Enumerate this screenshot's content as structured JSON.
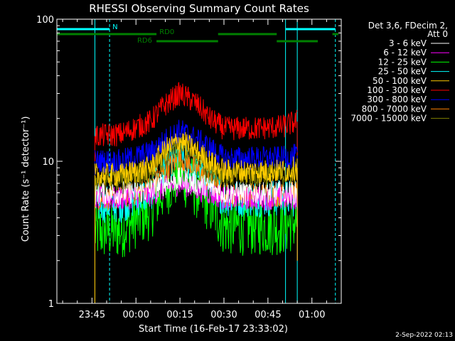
{
  "chart_data": {
    "type": "line",
    "title": "RHESSI Observing Summary Count Rates",
    "xlabel": "Start Time (16-Feb-17 23:33:02)",
    "ylabel": "Count Rate (s⁻¹ detector⁻¹)",
    "yscale": "log",
    "ylim": [
      1,
      100
    ],
    "xlim": [
      "23:33:02",
      "01:10:00"
    ],
    "x_tick_labels": [
      "23:45",
      "00:00",
      "00:15",
      "00:30",
      "00:45",
      "01:00"
    ],
    "y_tick_labels": [
      "1",
      "10",
      "100"
    ],
    "legend": {
      "placement": "right",
      "header_line1": "Det 3,6, FDecim 2,",
      "header_line2": "Att 0"
    },
    "flags": [
      {
        "name": "N",
        "color": "#00ffff",
        "segments": [
          [
            "23:33",
            "23:51"
          ],
          [
            "00:51",
            "01:08"
          ]
        ]
      },
      {
        "name": "RD0",
        "color": "#008000",
        "segments": [
          [
            "23:33",
            "00:07"
          ],
          [
            "00:28",
            "00:48"
          ],
          [
            "01:07",
            "01:09"
          ]
        ]
      },
      {
        "name": "RD6",
        "color": "#008000",
        "segments": [
          [
            "00:07",
            "00:28"
          ],
          [
            "00:48",
            "01:02"
          ]
        ]
      }
    ],
    "markers": [
      {
        "time": "23:33:02",
        "color": "#00ffff",
        "style": "solid"
      },
      {
        "time": "23:46",
        "color": "#00ffff",
        "style": "solid"
      },
      {
        "time": "23:51",
        "color": "#00ffff",
        "style": "dashed"
      },
      {
        "time": "00:51",
        "color": "#00ffff",
        "style": "solid"
      },
      {
        "time": "00:55",
        "color": "#00ffff",
        "style": "solid"
      },
      {
        "time": "01:08",
        "color": "#00ffff",
        "style": "dashed"
      }
    ],
    "data_start": "23:46",
    "data_end": "00:55",
    "series": [
      {
        "name": "3 - 6 keV",
        "color": "#ffffff",
        "x": [
          "23:46",
          "23:55",
          "00:05",
          "00:10",
          "00:15",
          "00:20",
          "00:25",
          "00:30",
          "00:40",
          "00:50",
          "00:55"
        ],
        "y": [
          6,
          6,
          6.2,
          7,
          7.5,
          7,
          6.5,
          6,
          6,
          6,
          6
        ]
      },
      {
        "name": "6 - 12 keV",
        "color": "#ff00ff",
        "x": [
          "23:46",
          "23:55",
          "00:05",
          "00:10",
          "00:15",
          "00:20",
          "00:25",
          "00:30",
          "00:40",
          "00:50",
          "00:55"
        ],
        "y": [
          5.5,
          5.5,
          5.8,
          6.5,
          7,
          6.5,
          6,
          5.5,
          5.5,
          5.5,
          5.5
        ]
      },
      {
        "name": "12 - 25 keV",
        "color": "#00ff00",
        "x": [
          "23:46",
          "23:55",
          "00:05",
          "00:10",
          "00:15",
          "00:20",
          "00:25",
          "00:30",
          "00:40",
          "00:50",
          "00:55"
        ],
        "y": [
          3.2,
          3.3,
          4.5,
          6.5,
          8,
          6.5,
          5,
          3.5,
          3.5,
          3.5,
          3.8
        ]
      },
      {
        "name": "25 - 50 keV",
        "color": "#00ffff",
        "x": [
          "23:46",
          "23:55",
          "00:05",
          "00:10",
          "00:15",
          "00:20",
          "00:25",
          "00:30",
          "00:40",
          "00:50",
          "00:55"
        ],
        "y": [
          5,
          5,
          6,
          9,
          11,
          9,
          7,
          5.5,
          5.5,
          5.5,
          5.5
        ]
      },
      {
        "name": "50 - 100 keV",
        "color": "#ffcc00",
        "x": [
          "23:46",
          "23:55",
          "00:05",
          "00:10",
          "00:15",
          "00:20",
          "00:25",
          "00:30",
          "00:40",
          "00:50",
          "00:55"
        ],
        "y": [
          8,
          8,
          9,
          12,
          14,
          12,
          10,
          8.5,
          8.5,
          8.5,
          9
        ]
      },
      {
        "name": "100 - 300 keV",
        "color": "#ff0000",
        "x": [
          "23:46",
          "23:55",
          "00:05",
          "00:10",
          "00:15",
          "00:20",
          "00:25",
          "00:30",
          "00:40",
          "00:50",
          "00:55"
        ],
        "y": [
          15,
          15.5,
          19,
          25,
          30,
          26,
          20,
          17,
          17,
          17.5,
          19
        ]
      },
      {
        "name": "300 - 800 keV",
        "color": "#0000ff",
        "x": [
          "23:46",
          "23:55",
          "00:05",
          "00:10",
          "00:15",
          "00:20",
          "00:25",
          "00:30",
          "00:40",
          "00:50",
          "00:55"
        ],
        "y": [
          10,
          10,
          11.5,
          14,
          16.5,
          14.5,
          12.5,
          10.5,
          10.5,
          10.5,
          11
        ]
      },
      {
        "name": "800 - 7000 keV",
        "color": "#ff8000",
        "x": [
          "23:46",
          "23:55",
          "00:05",
          "00:10",
          "00:15",
          "00:20",
          "00:25",
          "00:30",
          "00:40",
          "00:50",
          "00:55"
        ],
        "y": [
          5.5,
          5.5,
          6.5,
          8.5,
          10.5,
          9,
          7,
          5.8,
          5.8,
          5.8,
          6
        ]
      },
      {
        "name": "7000 - 15000 keV",
        "color": "#808000",
        "x": [
          "23:46",
          "23:55",
          "00:05",
          "00:10",
          "00:15",
          "00:20",
          "00:25",
          "00:30",
          "00:40",
          "00:50",
          "00:55"
        ],
        "y": [
          7.5,
          7.5,
          8.5,
          11,
          13,
          11,
          9,
          8,
          8,
          8,
          8.5
        ]
      }
    ]
  },
  "footer": {
    "timestamp": "2-Sep-2022 02:13"
  }
}
